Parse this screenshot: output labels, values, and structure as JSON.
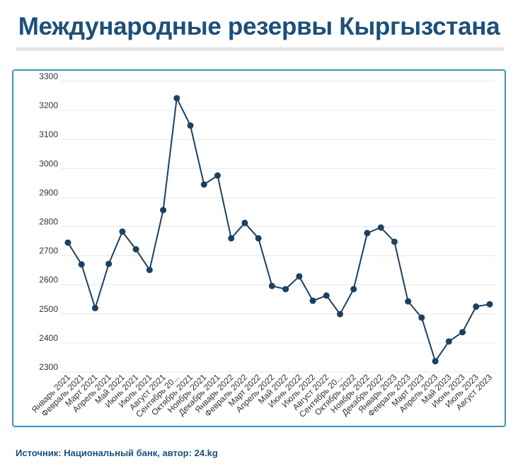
{
  "header": {
    "title": "Международные резервы Кыргызстана"
  },
  "footer": {
    "source": "Источник: Национальный банк, автор: 24.kg"
  },
  "colors": {
    "title": "#1d4f79",
    "line": "#1d4060",
    "frame": "#3a95b3",
    "grid": "#e6e6e6",
    "tick_text": "#333333"
  },
  "chart_data": {
    "type": "line",
    "title": "Международные резервы Кыргызстана",
    "xlabel": "",
    "ylabel": "",
    "ylim": [
      2300,
      3300
    ],
    "yticks": [
      2300,
      2400,
      2500,
      2600,
      2700,
      2800,
      2900,
      3000,
      3100,
      3200,
      3300
    ],
    "grid": true,
    "legend": "none",
    "categories": [
      "Январь 2021",
      "Февраль 2021",
      "Март 2021",
      "Апрель 2021",
      "Май 2021",
      "Июнь 2021",
      "Июль 2021",
      "Август 2021",
      "Сентябрь 20...",
      "Октябрь 2021",
      "Ноябрь 2021",
      "Декабрь 2021",
      "Январь 2022",
      "Февраль 2022",
      "Март 2022",
      "Апрель 2022",
      "Май 2022",
      "Июнь 2022",
      "Июль 2022",
      "Август 2022",
      "Сентябрь 20...",
      "Октябрь 2022",
      "Ноябрь 2022",
      "Декабрь 2022",
      "Январь 2023",
      "Февраль 2023",
      "Март 2023",
      "Апрель 2023",
      "Май 2023",
      "Июнь 2023",
      "Июль 2023",
      "Август 2023"
    ],
    "series": [
      {
        "values": [
          2745,
          2670,
          2520,
          2672,
          2783,
          2722,
          2651,
          2857,
          3242,
          3148,
          2945,
          2976,
          2760,
          2813,
          2760,
          2596,
          2585,
          2629,
          2545,
          2563,
          2499,
          2585,
          2778,
          2797,
          2748,
          2543,
          2487,
          2337,
          2405,
          2437,
          2525,
          2533
        ]
      }
    ]
  }
}
